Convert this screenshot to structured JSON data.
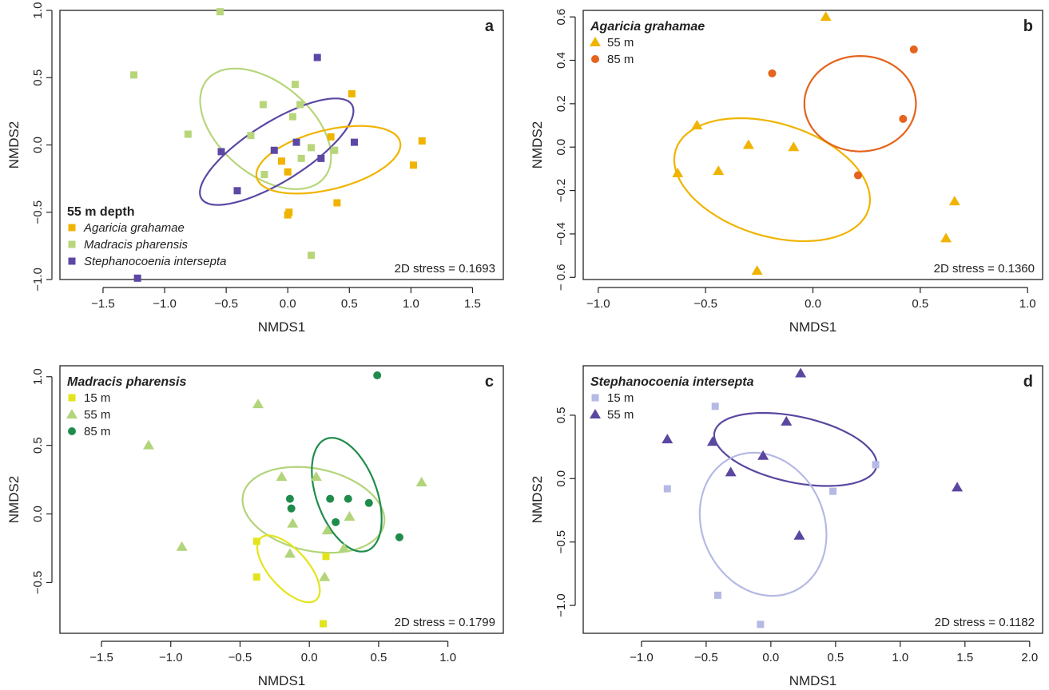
{
  "colors": {
    "ag55": "#f0b400",
    "ag85": "#e5631c",
    "md_sp": "#b7d67a",
    "st_sp": "#5c48a4",
    "md15": "#e4e41e",
    "md55": "#b2d47a",
    "md85": "#1f8c4c",
    "st15": "#b5b9e4",
    "st55": "#5b479f",
    "axis": "#222222"
  },
  "chart_data": [
    {
      "panel": "a",
      "type": "scatter",
      "xlabel": "NMDS1",
      "ylabel": "NMDS2",
      "xlim": [
        -1.85,
        1.75
      ],
      "ylim": [
        -1.0,
        1.0
      ],
      "xticks": [
        -1.5,
        -1.0,
        -0.5,
        0.0,
        0.5,
        1.0,
        1.5
      ],
      "xtick_labels": [
        "−1.5",
        "−1.0",
        "−0.5",
        "0.0",
        "0.5",
        "1.0",
        "1.5"
      ],
      "yticks": [
        -1.0,
        -0.5,
        0.0,
        0.5,
        1.0
      ],
      "ytick_labels": [
        "−1.0",
        "−0.5",
        "0.0",
        "0.5",
        "1.0"
      ],
      "stress": "2D stress = 0.1693",
      "legend_title": "55 m depth",
      "legend_italic": true,
      "legend_position": "bottom-left",
      "series": [
        {
          "name": "Agaricia grahamae",
          "color": "#f0b400",
          "marker": "square",
          "x": [
            -0.05,
            0.0,
            0.01,
            0.35,
            0.4,
            0.52,
            1.02,
            1.09,
            0.0
          ],
          "y": [
            -0.12,
            -0.2,
            -0.5,
            0.06,
            -0.43,
            0.38,
            -0.15,
            0.03,
            -0.52
          ]
        },
        {
          "name": "Madracis pharensis",
          "color": "#b7d67a",
          "marker": "square",
          "x": [
            -0.55,
            -1.25,
            -0.81,
            -0.2,
            -0.3,
            0.06,
            0.04,
            0.1,
            0.19,
            0.38,
            0.11,
            -0.19,
            0.19
          ],
          "y": [
            0.99,
            0.52,
            0.08,
            0.3,
            0.07,
            0.45,
            0.21,
            0.3,
            -0.02,
            -0.04,
            -0.1,
            -0.22,
            -0.82
          ]
        },
        {
          "name": "Stephanocoenia intersepta",
          "color": "#5c48a4",
          "marker": "square",
          "x": [
            0.24,
            -0.54,
            -0.41,
            -0.11,
            0.07,
            0.27,
            0.54,
            -1.22
          ],
          "y": [
            0.65,
            -0.05,
            -0.34,
            -0.04,
            0.02,
            -0.1,
            0.02,
            -0.99
          ]
        }
      ],
      "ellipses": [
        {
          "series": "Madracis pharensis",
          "center": [
            -0.18,
            0.12
          ],
          "a": 0.62,
          "b": 0.34,
          "angle_deg": -40
        },
        {
          "series": "Stephanocoenia intersepta",
          "center": [
            -0.09,
            -0.05
          ],
          "a": 0.72,
          "b": 0.22,
          "angle_deg": 32
        },
        {
          "series": "Agaricia grahamae",
          "center": [
            0.33,
            -0.11
          ],
          "a": 0.6,
          "b": 0.22,
          "angle_deg": 14
        }
      ]
    },
    {
      "panel": "b",
      "type": "scatter",
      "xlabel": "NMDS1",
      "ylabel": "NMDS2",
      "xlim": [
        -1.07,
        1.07
      ],
      "ylim": [
        -0.61,
        0.63
      ],
      "xticks": [
        -1.0,
        -0.5,
        0.0,
        0.5,
        1.0
      ],
      "xtick_labels": [
        "−1.0",
        "−0.5",
        "0.0",
        "0.5",
        "1.0"
      ],
      "yticks": [
        -0.6,
        -0.4,
        -0.2,
        0.0,
        0.2,
        0.4,
        0.6
      ],
      "ytick_labels": [
        "− 0.6",
        "−0.4",
        "−0.2",
        "0.0",
        "0.2",
        "0.4",
        "0.6"
      ],
      "stress": "2D stress = 0.1360",
      "legend_title": "Agaricia grahamae",
      "legend_italic": false,
      "legend_position": "top-left",
      "series": [
        {
          "name": "55 m",
          "color": "#f0b400",
          "marker": "triangle",
          "x": [
            0.06,
            -0.54,
            -0.3,
            -0.09,
            -0.63,
            -0.44,
            0.66,
            0.62,
            -0.26
          ],
          "y": [
            0.6,
            0.1,
            0.01,
            0.0,
            -0.12,
            -0.11,
            -0.25,
            -0.42,
            -0.57
          ]
        },
        {
          "name": "85 m",
          "color": "#e5631c",
          "marker": "circle",
          "x": [
            -0.19,
            0.47,
            0.42,
            0.21
          ],
          "y": [
            0.34,
            0.45,
            0.13,
            -0.13
          ]
        }
      ],
      "ellipses": [
        {
          "series": "55 m",
          "center": [
            -0.19,
            -0.15
          ],
          "a": 0.47,
          "b": 0.26,
          "angle_deg": -17
        },
        {
          "series": "85 m",
          "center": [
            0.22,
            0.2
          ],
          "a": 0.26,
          "b": 0.22,
          "angle_deg": 0
        }
      ]
    },
    {
      "panel": "c",
      "type": "scatter",
      "xlabel": "NMDS1",
      "ylabel": "NMDS2",
      "xlim": [
        -1.8,
        1.4
      ],
      "ylim": [
        -0.87,
        1.08
      ],
      "xticks": [
        -1.5,
        -1.0,
        -0.5,
        0.0,
        0.5,
        1.0
      ],
      "xtick_labels": [
        "−1.5",
        "−1.0",
        "−0.5",
        "0.0",
        "0.5",
        "1.0"
      ],
      "yticks": [
        -0.5,
        0.0,
        0.5,
        1.0
      ],
      "ytick_labels": [
        "−0.5",
        "0.0",
        "0.5",
        "1.0"
      ],
      "stress": "2D stress = 0.1799",
      "legend_title": "Madracis pharensis",
      "legend_italic": false,
      "legend_position": "top-left",
      "series": [
        {
          "name": "15 m",
          "color": "#e4e41e",
          "marker": "square",
          "x": [
            -0.38,
            -0.38,
            0.12,
            0.1
          ],
          "y": [
            -0.2,
            -0.46,
            -0.31,
            -0.8
          ]
        },
        {
          "name": "55 m",
          "color": "#b2d47a",
          "marker": "triangle",
          "x": [
            -1.16,
            -0.37,
            -0.2,
            0.05,
            -0.12,
            0.13,
            0.29,
            0.81,
            -0.92,
            -0.14,
            0.25,
            0.11
          ],
          "y": [
            0.5,
            0.8,
            0.27,
            0.27,
            -0.07,
            -0.12,
            -0.02,
            0.23,
            -0.24,
            -0.29,
            -0.25,
            -0.46
          ]
        },
        {
          "name": "85 m",
          "color": "#1f8c4c",
          "marker": "circle",
          "x": [
            0.49,
            -0.14,
            -0.13,
            0.15,
            0.28,
            0.43,
            0.19,
            0.65
          ],
          "y": [
            1.01,
            0.11,
            0.04,
            0.11,
            0.11,
            0.08,
            -0.06,
            -0.17
          ]
        }
      ],
      "ellipses": [
        {
          "series": "55 m",
          "center": [
            0.03,
            0.03
          ],
          "a": 0.52,
          "b": 0.3,
          "angle_deg": -12
        },
        {
          "series": "85 m",
          "center": [
            0.27,
            0.14
          ],
          "a": 0.43,
          "b": 0.22,
          "angle_deg": -70
        },
        {
          "series": "15 m",
          "center": [
            -0.15,
            -0.4
          ],
          "a": 0.3,
          "b": 0.14,
          "angle_deg": -48
        }
      ]
    },
    {
      "panel": "d",
      "type": "scatter",
      "xlabel": "NMDS1",
      "ylabel": "NMDS2",
      "xlim": [
        -1.45,
        2.1
      ],
      "ylim": [
        -1.22,
        0.89
      ],
      "xticks": [
        -1.0,
        -0.5,
        0.0,
        0.5,
        1.0,
        1.5,
        2.0
      ],
      "xtick_labels": [
        "−1.0",
        "−0.5",
        "0.0",
        "0.5",
        "1.0",
        "1.5",
        "2.0"
      ],
      "yticks": [
        -1.0,
        -0.5,
        0.0,
        0.5
      ],
      "ytick_labels": [
        "−1.0",
        "−0.5",
        "0.0",
        "0.5"
      ],
      "stress": "2D stress = 0.1182",
      "legend_title": "Stephanocoenia intersepta",
      "legend_italic": false,
      "legend_position": "top-left",
      "series": [
        {
          "name": "15 m",
          "color": "#b5b9e4",
          "marker": "square",
          "x": [
            -0.43,
            0.81,
            -0.8,
            0.48,
            -0.41,
            -0.08
          ],
          "y": [
            0.57,
            0.11,
            -0.08,
            -0.1,
            -0.92,
            -1.15
          ]
        },
        {
          "name": "55 m",
          "color": "#5b479f",
          "marker": "triangle",
          "x": [
            0.23,
            -0.8,
            -0.45,
            0.12,
            -0.06,
            -0.31,
            1.44,
            0.22
          ],
          "y": [
            0.83,
            0.31,
            0.29,
            0.45,
            0.18,
            0.05,
            -0.07,
            -0.45
          ]
        }
      ],
      "ellipses": [
        {
          "series": "55 m",
          "center": [
            0.19,
            0.23
          ],
          "a": 0.64,
          "b": 0.26,
          "angle_deg": -12
        },
        {
          "series": "15 m",
          "center": [
            -0.06,
            -0.36
          ],
          "a": 0.57,
          "b": 0.48,
          "angle_deg": -65
        }
      ]
    }
  ]
}
